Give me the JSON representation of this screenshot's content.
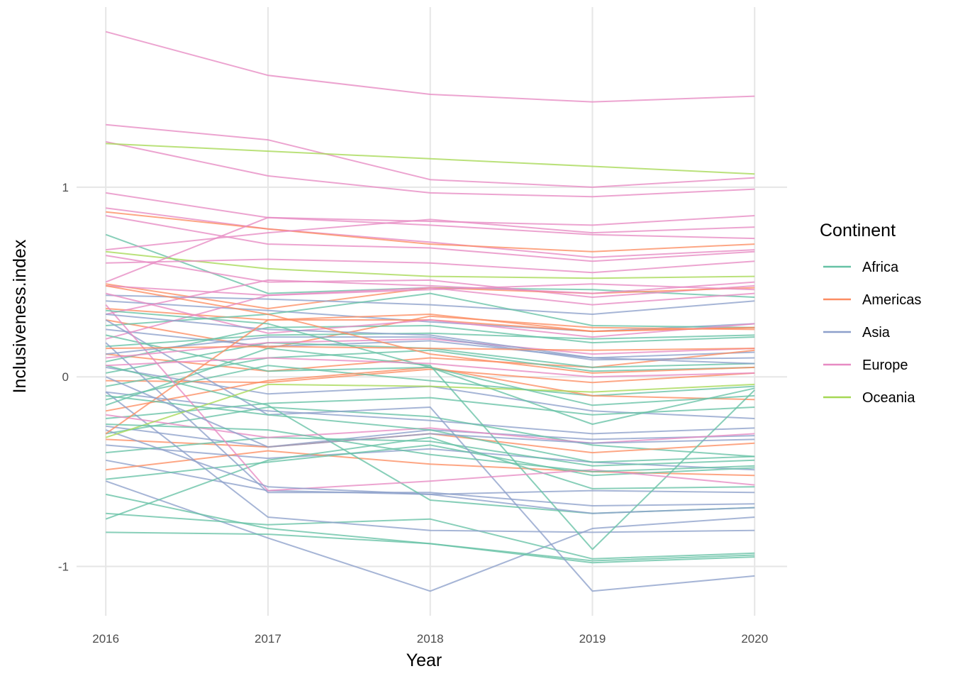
{
  "chart_data": {
    "type": "line",
    "title": "",
    "xlabel": "Year",
    "ylabel": "Inclusiveness.index",
    "x": [
      2016,
      2017,
      2018,
      2019,
      2020
    ],
    "x_ticks": [
      "2016",
      "2017",
      "2018",
      "2019",
      "2020"
    ],
    "y_ticks": [
      {
        "value": 1,
        "label": "1"
      },
      {
        "value": 0,
        "label": "0"
      },
      {
        "value": -1,
        "label": "-1"
      }
    ],
    "xlim": [
      2015.82,
      2020.2
    ],
    "ylim": [
      -1.26,
      1.95
    ],
    "grid": true,
    "legend": {
      "title": "Continent",
      "placement": "right",
      "entries": [
        {
          "label": "Africa",
          "color": "#66c2a5"
        },
        {
          "label": "Americas",
          "color": "#fc8d62"
        },
        {
          "label": "Asia",
          "color": "#8da0cb"
        },
        {
          "label": "Europe",
          "color": "#e78ac3"
        },
        {
          "label": "Oceania",
          "color": "#a6d854"
        }
      ]
    },
    "series": [
      {
        "group": "Europe",
        "values": [
          1.82,
          1.59,
          1.49,
          1.45,
          1.48
        ]
      },
      {
        "group": "Europe",
        "values": [
          1.33,
          1.25,
          1.04,
          1.0,
          1.05
        ]
      },
      {
        "group": "Europe",
        "values": [
          1.24,
          1.06,
          0.97,
          0.95,
          0.99
        ]
      },
      {
        "group": "Oceania",
        "values": [
          1.23,
          1.19,
          1.15,
          1.11,
          1.07
        ]
      },
      {
        "group": "Europe",
        "values": [
          0.97,
          0.84,
          0.82,
          0.8,
          0.85
        ]
      },
      {
        "group": "Europe",
        "values": [
          0.89,
          0.78,
          0.71,
          0.63,
          0.67
        ]
      },
      {
        "group": "Americas",
        "values": [
          0.87,
          0.78,
          0.7,
          0.66,
          0.7
        ]
      },
      {
        "group": "Europe",
        "values": [
          0.85,
          0.7,
          0.68,
          0.61,
          0.66
        ]
      },
      {
        "group": "Africa",
        "values": [
          0.75,
          0.44,
          0.47,
          0.46,
          0.42
        ]
      },
      {
        "group": "Europe",
        "values": [
          0.67,
          0.76,
          0.83,
          0.76,
          0.79
        ]
      },
      {
        "group": "Oceania",
        "values": [
          0.66,
          0.57,
          0.53,
          0.52,
          0.53
        ]
      },
      {
        "group": "Europe",
        "values": [
          0.64,
          0.5,
          0.51,
          0.42,
          0.48
        ]
      },
      {
        "group": "Europe",
        "values": [
          0.6,
          0.62,
          0.6,
          0.55,
          0.61
        ]
      },
      {
        "group": "Europe",
        "values": [
          0.5,
          0.84,
          0.8,
          0.75,
          0.73
        ]
      },
      {
        "group": "Americas",
        "values": [
          0.49,
          0.36,
          0.47,
          0.44,
          0.47
        ]
      },
      {
        "group": "Europe",
        "values": [
          0.48,
          0.43,
          0.47,
          0.38,
          0.44
        ]
      },
      {
        "group": "Asia",
        "values": [
          0.43,
          0.41,
          0.38,
          0.33,
          0.4
        ]
      },
      {
        "group": "Asia",
        "values": [
          0.4,
          0.35,
          0.29,
          0.24,
          0.28
        ]
      },
      {
        "group": "Americas",
        "values": [
          0.36,
          0.3,
          0.3,
          0.24,
          0.26
        ]
      },
      {
        "group": "Europe",
        "values": [
          0.33,
          0.51,
          0.48,
          0.44,
          0.5
        ]
      },
      {
        "group": "Americas",
        "values": [
          0.3,
          0.15,
          0.32,
          0.26,
          0.25
        ]
      },
      {
        "group": "Africa",
        "values": [
          0.27,
          0.33,
          0.44,
          0.27,
          0.26
        ]
      },
      {
        "group": "Asia",
        "values": [
          0.25,
          0.16,
          0.19,
          0.1,
          0.13
        ]
      },
      {
        "group": "Europe",
        "values": [
          0.2,
          0.43,
          0.46,
          0.49,
          0.46
        ]
      },
      {
        "group": "Africa",
        "values": [
          0.16,
          0.22,
          0.23,
          0.2,
          0.22
        ]
      },
      {
        "group": "Americas",
        "values": [
          0.12,
          0.03,
          0.1,
          0.05,
          0.14
        ]
      },
      {
        "group": "Africa",
        "values": [
          0.08,
          0.26,
          0.27,
          0.18,
          0.21
        ]
      },
      {
        "group": "Asia",
        "values": [
          0.05,
          -0.09,
          -0.05,
          -0.18,
          -0.22
        ]
      },
      {
        "group": "Africa",
        "values": [
          0.02,
          0.18,
          0.15,
          0.05,
          0.07
        ]
      },
      {
        "group": "Americas",
        "values": [
          -0.02,
          -0.03,
          0.04,
          -0.03,
          0.02
        ]
      },
      {
        "group": "Africa",
        "values": [
          -0.05,
          0.1,
          0.14,
          0.03,
          0.05
        ]
      },
      {
        "group": "Asia",
        "values": [
          -0.08,
          -0.18,
          -0.23,
          -0.3,
          -0.27
        ]
      },
      {
        "group": "Africa",
        "values": [
          -0.12,
          0.06,
          -0.02,
          -0.1,
          -0.05
        ]
      },
      {
        "group": "Americas",
        "values": [
          -0.18,
          -0.02,
          0.05,
          -0.1,
          -0.12
        ]
      },
      {
        "group": "Africa",
        "values": [
          -0.22,
          -0.14,
          -0.11,
          -0.2,
          -0.16
        ]
      },
      {
        "group": "Asia",
        "values": [
          -0.26,
          -0.37,
          -0.28,
          -0.33,
          -0.31
        ]
      },
      {
        "group": "Africa",
        "values": [
          -0.3,
          -0.16,
          -0.21,
          -0.36,
          -0.42
        ]
      },
      {
        "group": "Americas",
        "values": [
          -0.33,
          -0.37,
          -0.3,
          -0.4,
          -0.35
        ]
      },
      {
        "group": "Asia",
        "values": [
          -0.36,
          -0.43,
          -0.38,
          -0.45,
          -0.49
        ]
      },
      {
        "group": "Africa",
        "values": [
          -0.4,
          -0.32,
          -0.34,
          -0.47,
          -0.44
        ]
      },
      {
        "group": "Asia",
        "values": [
          -0.44,
          -0.6,
          -0.62,
          -0.6,
          -0.61
        ]
      },
      {
        "group": "Americas",
        "values": [
          -0.49,
          -0.39,
          -0.46,
          -0.5,
          -0.52
        ]
      },
      {
        "group": "Africa",
        "values": [
          -0.54,
          -0.45,
          -0.36,
          -0.52,
          -0.48
        ]
      },
      {
        "group": "Asia",
        "values": [
          -0.55,
          -0.85,
          -1.13,
          -0.8,
          -0.74
        ]
      },
      {
        "group": "Africa",
        "values": [
          -0.62,
          -0.8,
          -0.88,
          -0.97,
          -0.94
        ]
      },
      {
        "group": "Africa",
        "values": [
          -0.72,
          -0.78,
          -0.75,
          -0.96,
          -0.93
        ]
      },
      {
        "group": "Africa",
        "values": [
          -0.75,
          -0.44,
          -0.32,
          -0.59,
          -0.58
        ]
      },
      {
        "group": "Africa",
        "values": [
          -0.82,
          -0.83,
          -0.88,
          -0.98,
          -0.95
        ]
      },
      {
        "group": "Asia",
        "values": [
          -0.08,
          -0.74,
          -0.81,
          -0.82,
          -0.81
        ]
      },
      {
        "group": "Asia",
        "values": [
          0.18,
          -0.61,
          -0.61,
          -0.68,
          -0.67
        ]
      },
      {
        "group": "Asia",
        "values": [
          0.3,
          -0.2,
          -0.16,
          -1.13,
          -1.05
        ]
      },
      {
        "group": "Africa",
        "values": [
          0.06,
          -0.15,
          -0.65,
          -0.72,
          -0.69
        ]
      },
      {
        "group": "Africa",
        "values": [
          0.22,
          0.03,
          0.05,
          -0.25,
          -0.06
        ]
      },
      {
        "group": "Africa",
        "values": [
          -0.15,
          0.15,
          0.06,
          -0.91,
          -0.07
        ]
      },
      {
        "group": "Europe",
        "values": [
          0.38,
          -0.6,
          -0.55,
          -0.49,
          -0.57
        ]
      },
      {
        "group": "Europe",
        "values": [
          0.1,
          0.18,
          0.2,
          0.12,
          0.15
        ]
      },
      {
        "group": "Europe",
        "values": [
          0.44,
          0.23,
          0.3,
          0.21,
          0.28
        ]
      },
      {
        "group": "Europe",
        "values": [
          -0.2,
          -0.32,
          -0.27,
          -0.35,
          -0.3
        ]
      },
      {
        "group": "Asia",
        "values": [
          -0.28,
          -0.58,
          -0.62,
          -0.72,
          -0.69
        ]
      },
      {
        "group": "Asia",
        "values": [
          0.12,
          0.21,
          0.21,
          0.09,
          0.1
        ]
      },
      {
        "group": "Asia",
        "values": [
          0.33,
          0.25,
          0.22,
          0.1,
          0.07
        ]
      },
      {
        "group": "Americas",
        "values": [
          0.48,
          0.33,
          0.12,
          0.02,
          0.05
        ]
      },
      {
        "group": "Americas",
        "values": [
          -0.3,
          0.3,
          0.33,
          0.24,
          0.26
        ]
      },
      {
        "group": "Oceania",
        "values": [
          -0.32,
          -0.04,
          -0.05,
          -0.08,
          -0.04
        ]
      },
      {
        "group": "Africa",
        "values": [
          0.35,
          0.28,
          0.05,
          -0.15,
          -0.1
        ]
      },
      {
        "group": "Africa",
        "values": [
          -0.1,
          -0.2,
          -0.28,
          -0.45,
          -0.42
        ]
      },
      {
        "group": "Asia",
        "values": [
          0.0,
          -0.37,
          -0.3,
          -0.35,
          -0.33
        ]
      },
      {
        "group": "Europe",
        "values": [
          0.06,
          0.1,
          0.07,
          0.0,
          0.02
        ]
      },
      {
        "group": "Americas",
        "values": [
          0.15,
          0.16,
          0.15,
          0.14,
          0.15
        ]
      },
      {
        "group": "Africa",
        "values": [
          -0.25,
          -0.28,
          -0.41,
          -0.5,
          -0.47
        ]
      }
    ]
  }
}
